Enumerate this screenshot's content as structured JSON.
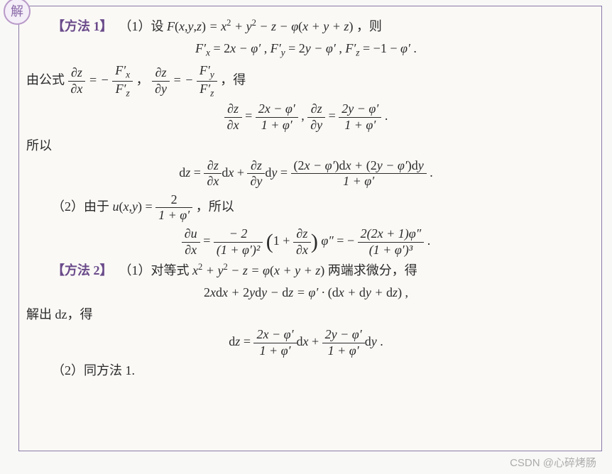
{
  "badge": "解",
  "method1": {
    "tag": "【方法 1】",
    "line1_pre": "（1）设 ",
    "line1_Fdef": "F(x,y,z) = x² + y² − z − φ(x + y + z)",
    "line1_post": "，则",
    "partials_Fx": "F′ₓ = 2x − φ′ ,",
    "partials_Fy": "F′_y = 2y − φ′ ,",
    "partials_Fz": "F′_z = − 1 − φ′ .",
    "gongshi_pre": "由公式",
    "gongshi_mid1": "= −",
    "gongshi_comma": "，",
    "gongshi_mid2": "= −",
    "gongshi_post": "，得",
    "dz_dx_lhs": "∂z/∂x",
    "dz_dx_num": "2x − φ′",
    "dz_dx_den": "1 + φ′",
    "dz_dy_lhs": "∂z/∂y",
    "dz_dy_num": "2y − φ′",
    "dz_dy_den": "1 + φ′",
    "suoyi": "所以",
    "dz_eq_pre": "dz =",
    "dz_eq_mid": "dx +",
    "dz_eq_mid2": "dy =",
    "dz_final_num": "(2x − φ′)dx + (2y − φ′)dy",
    "dz_final_den": "1 + φ′",
    "part2_pre": "（2）由于 ",
    "u_def": "u(x,y) =",
    "u_num": "2",
    "u_den": "1 + φ′",
    "part2_post": "，所以",
    "du_lhs": "∂u/∂x",
    "du_mid1_num": "− 2",
    "du_mid1_den": "(1 + φ′)²",
    "du_paren_inner": "1 +",
    "du_phi2": "φ″ = −",
    "du_final_num": "2(2x + 1)φ″",
    "du_final_den": "(1 + φ′)³"
  },
  "method2": {
    "tag": "【方法 2】",
    "line1_pre": "（1）对等式 ",
    "eq": "x² + y² − z = φ(x + y + z)",
    "line1_post": " 两端求微分，得",
    "diff_line": "2x dx + 2y dy − dz = φ′ · (dx + dy + dz) ,",
    "jiechu": "解出 dz，得",
    "dz_num1": "2x − φ′",
    "dz_den1": "1 + φ′",
    "dz_num2": "2y − φ′",
    "dz_den2": "1 + φ′",
    "part2": "（2）同方法 1."
  },
  "fraction_labels": {
    "dz": "∂z",
    "dx": "∂x",
    "dy": "∂y",
    "du": "∂u",
    "Fx": "F′ₓ",
    "Fy": "F′_y",
    "Fz": "F′_z"
  },
  "watermark": "CSDN @心碎烤肠"
}
